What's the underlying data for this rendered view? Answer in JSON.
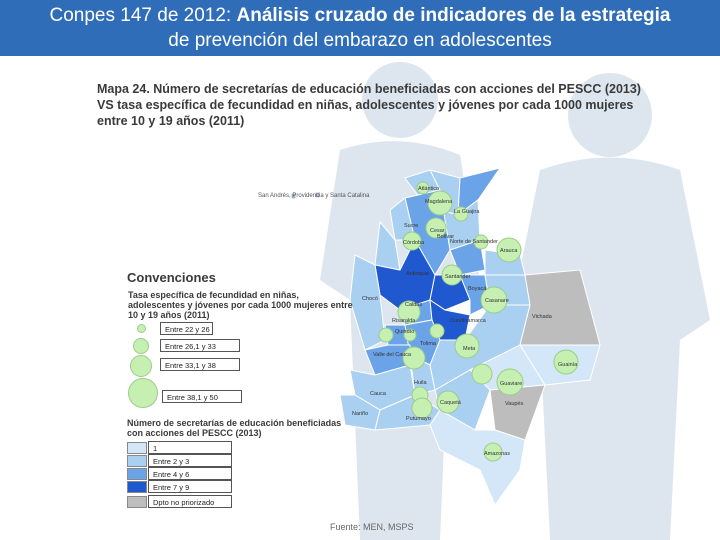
{
  "header": {
    "title_prefix": "Conpes 147 de 2012: ",
    "title_bold": "Análisis cruzado de indicadores de la estrategia",
    "title_line2": "de prevención del embarazo en adolescentes",
    "background_color": "#2f6db8"
  },
  "map": {
    "title": "Mapa 24. Número de secretarías de educación beneficiadas con acciones del PESCC (2013) VS tasa específica de fecundidad en niñas, adolescentes y jóvenes por cada 1000 mujeres entre 10 y 19 años (2011)",
    "island_label": "San Andrés, Providencia y Santa Catalina",
    "source": "Fuente: MEN, MSPS",
    "department_labels": [
      "Atlántico",
      "Magdalena",
      "La Guajira",
      "Cesar",
      "Sucre",
      "Bolívar",
      "Córdoba",
      "Norte de Santander",
      "Antioquia",
      "Santander",
      "Arauca",
      "Boyacá",
      "Casanare",
      "Caldas",
      "Cundinamarca",
      "Chocó",
      "Risaralda",
      "Quindío",
      "Tolima",
      "Valle del Cauca",
      "Meta",
      "Vichada",
      "Huila",
      "Cauca",
      "Nariño",
      "Guainía",
      "Putumayo",
      "Caquetá",
      "Guaviare",
      "Vaupés",
      "Amazonas"
    ]
  },
  "legend": {
    "title": "Convenciones",
    "rate_title": "Tasa específica de fecundidad en niñas, adolescentes y jóvenes por cada 1000 mujeres entre 10 y 19 años (2011)",
    "rate_items": [
      "Entre 22 y 26",
      "Entre 26,1 y 33",
      "Entre 33,1 y 38",
      "Entre 38,1 y 50"
    ],
    "count_title": "Número de secretarías de educación beneficiadas con acciones del PESCC (2013)",
    "count_items": [
      {
        "label": "1",
        "color": "#d4e7f8"
      },
      {
        "label": "Entre 2 y 3",
        "color": "#a9cff1"
      },
      {
        "label": "Entre 4 y 6",
        "color": "#6aa3e8"
      },
      {
        "label": "Entre 7 y 9",
        "color": "#2058d0"
      },
      {
        "label": "Dpto no priorizado",
        "color": "#bdbdbd"
      }
    ]
  }
}
